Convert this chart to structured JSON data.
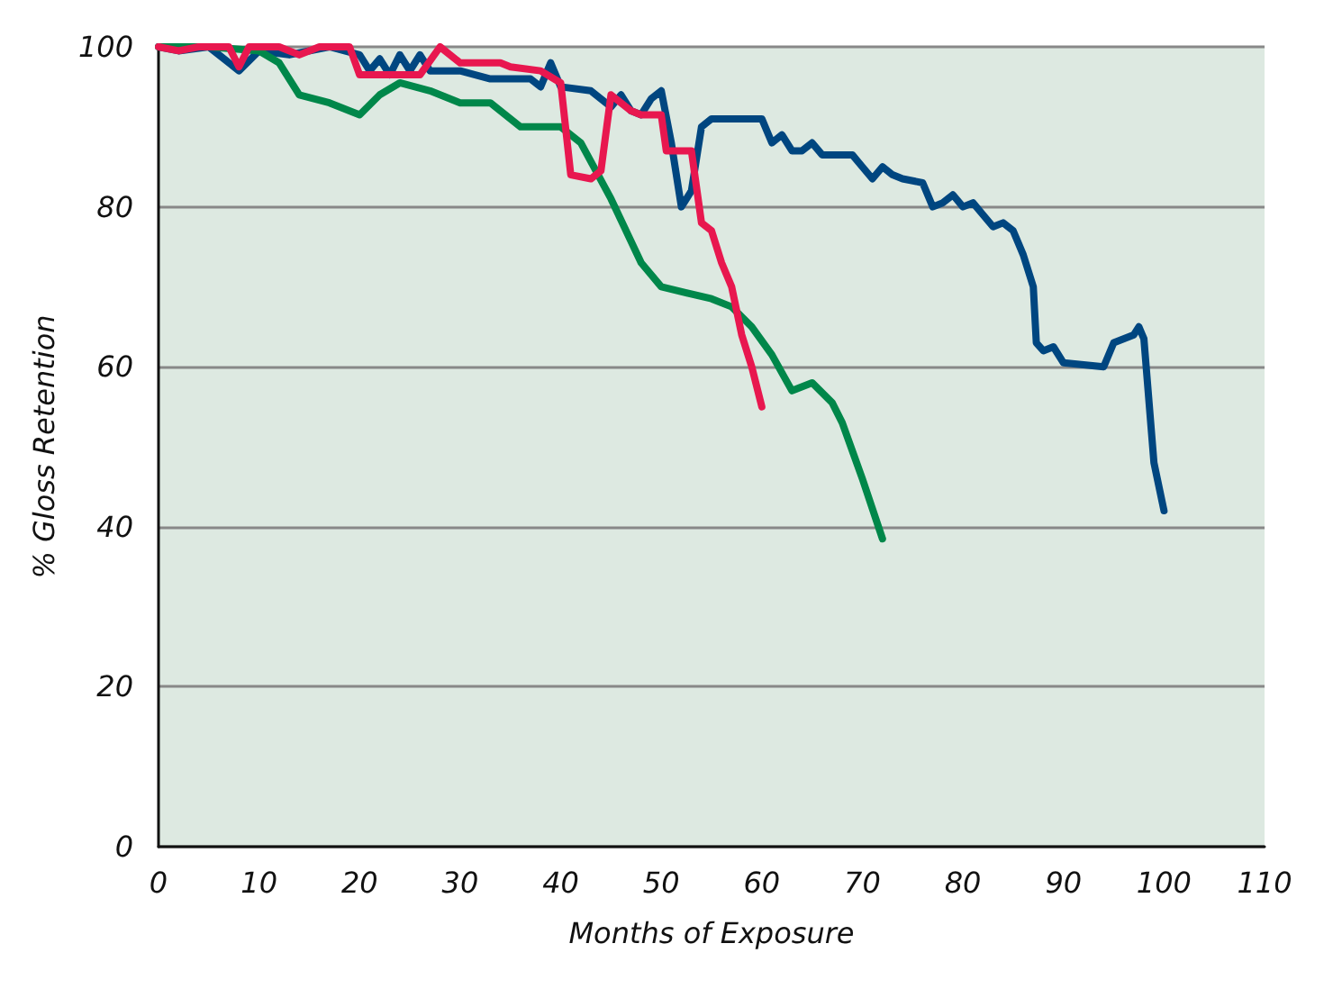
{
  "chart_data": {
    "type": "line",
    "xlabel": "Months of Exposure",
    "ylabel": "% Gloss Retention",
    "xlim": [
      0,
      110
    ],
    "xticks": [
      0,
      10,
      20,
      30,
      40,
      50,
      60,
      70,
      80,
      90,
      100,
      110
    ],
    "ylim": [
      0,
      100
    ],
    "yticks": [
      0,
      20,
      40,
      60,
      80,
      100
    ],
    "grid": "y",
    "marker": "none",
    "line_style": "solid",
    "series": [
      {
        "color": "#004680",
        "x": [
          0,
          2,
          5,
          8,
          10,
          13,
          17,
          20,
          21,
          22,
          23,
          24,
          25,
          26,
          27,
          30,
          33,
          37,
          38,
          39,
          40,
          43,
          45,
          46,
          47,
          48,
          49,
          50,
          51,
          52,
          53,
          54,
          55,
          60,
          61,
          62,
          63,
          64,
          65,
          66,
          69,
          70,
          71,
          72,
          73,
          74,
          76,
          77,
          78,
          79,
          80,
          81,
          82,
          83,
          84,
          85,
          86,
          87,
          87.3,
          88,
          89,
          90,
          94,
          95,
          97,
          97.5,
          98,
          99,
          100
        ],
        "values": [
          100,
          99.5,
          100,
          97,
          99.5,
          99,
          100,
          99,
          97,
          98.5,
          96.5,
          99,
          97,
          99,
          97,
          97,
          96,
          96,
          95,
          98,
          95,
          94.5,
          92.5,
          94,
          92,
          91.5,
          93.5,
          94.5,
          88,
          80,
          82,
          90,
          91,
          91,
          88,
          89,
          87,
          87,
          88,
          86.5,
          86.5,
          85,
          83.5,
          85,
          84,
          83.5,
          83,
          80,
          80.5,
          81.5,
          80,
          80.5,
          79,
          77.5,
          78,
          77,
          74,
          70,
          63,
          62,
          62.5,
          60.5,
          60,
          63,
          64,
          65,
          63.5,
          48,
          42
        ]
      },
      {
        "color": "#00874a",
        "x": [
          0,
          5,
          10,
          12,
          14,
          17,
          20,
          22,
          24,
          27,
          30,
          33,
          36,
          40,
          42,
          45,
          48,
          50,
          55,
          57,
          59,
          61,
          63,
          65,
          67,
          68,
          70,
          72
        ],
        "values": [
          100,
          100,
          99.5,
          98,
          94,
          93,
          91.5,
          94,
          95.5,
          94.5,
          93,
          93,
          90,
          90,
          88,
          81,
          73,
          70,
          68.5,
          67.5,
          65,
          61.5,
          57,
          58,
          55.5,
          53,
          46,
          38.5
        ]
      },
      {
        "color": "#e8174f",
        "x": [
          0,
          2,
          4,
          7,
          8,
          9,
          12,
          14,
          16,
          19,
          20,
          24,
          26,
          28,
          30,
          34,
          35,
          38,
          40,
          41,
          43,
          44,
          45,
          47,
          48,
          50,
          50.5,
          53,
          54,
          55,
          56,
          57,
          58,
          59,
          60
        ],
        "values": [
          100,
          99.5,
          100,
          100,
          97.5,
          100,
          100,
          99,
          100,
          100,
          96.5,
          96.5,
          96.5,
          100,
          98,
          98,
          97.5,
          97,
          95.5,
          84,
          83.5,
          84.5,
          94,
          92,
          91.5,
          91.5,
          87,
          87,
          78,
          77,
          73,
          70,
          64,
          60,
          55
        ]
      }
    ]
  }
}
